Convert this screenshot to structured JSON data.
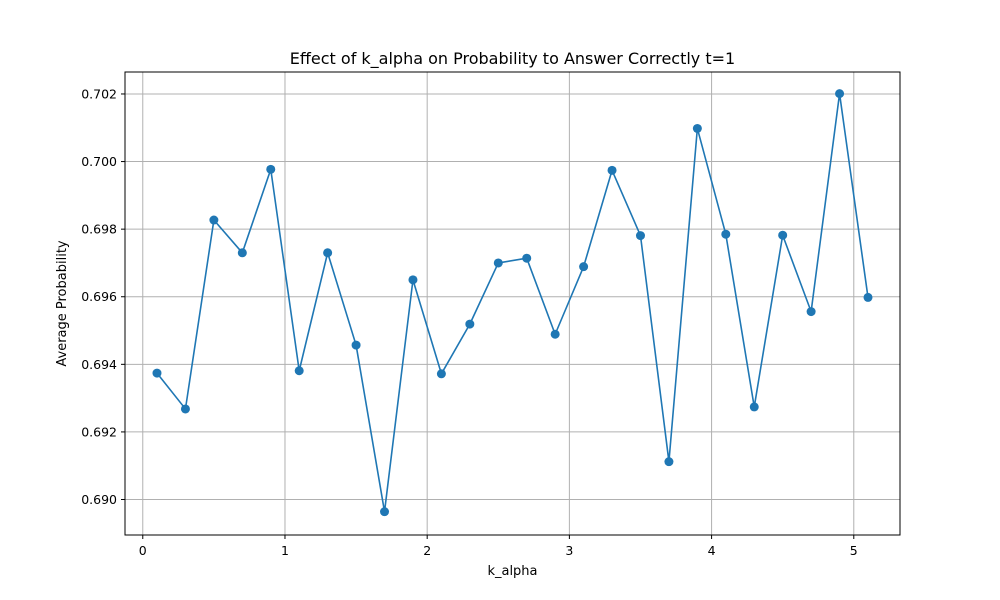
{
  "chart_data": {
    "type": "line",
    "title": "Effect of k_alpha on Probability to Answer Correctly t=1",
    "xlabel": "k_alpha",
    "ylabel": "Average Probability",
    "xlim": [
      -0.125,
      5.325
    ],
    "ylim": [
      0.68895,
      0.70265
    ],
    "xticks": [
      0,
      1,
      2,
      3,
      4,
      5
    ],
    "xtick_labels": [
      "0",
      "1",
      "2",
      "3",
      "4",
      "5"
    ],
    "yticks": [
      0.69,
      0.692,
      0.694,
      0.696,
      0.698,
      0.7,
      0.702
    ],
    "ytick_labels": [
      "0.690",
      "0.692",
      "0.694",
      "0.696",
      "0.698",
      "0.700",
      "0.702"
    ],
    "grid": true,
    "color": "#1f77b4",
    "marker": "circle",
    "series": [
      {
        "x": [
          0.1,
          0.3,
          0.5,
          0.7,
          0.9,
          1.1,
          1.3,
          1.5,
          1.7,
          1.9,
          2.1,
          2.3,
          2.5,
          2.7,
          2.9,
          3.1,
          3.3,
          3.5,
          3.7,
          3.9,
          4.1,
          4.3,
          4.5,
          4.7,
          4.9,
          5.1
        ],
        "values": [
          0.69374,
          0.69268,
          0.69827,
          0.6973,
          0.69977,
          0.69381,
          0.6973,
          0.69457,
          0.68964,
          0.6965,
          0.69372,
          0.69519,
          0.697,
          0.69714,
          0.69489,
          0.69689,
          0.69974,
          0.69781,
          0.69112,
          0.70098,
          0.69785,
          0.69274,
          0.69782,
          0.69556,
          0.70201,
          0.69598
        ]
      }
    ]
  }
}
